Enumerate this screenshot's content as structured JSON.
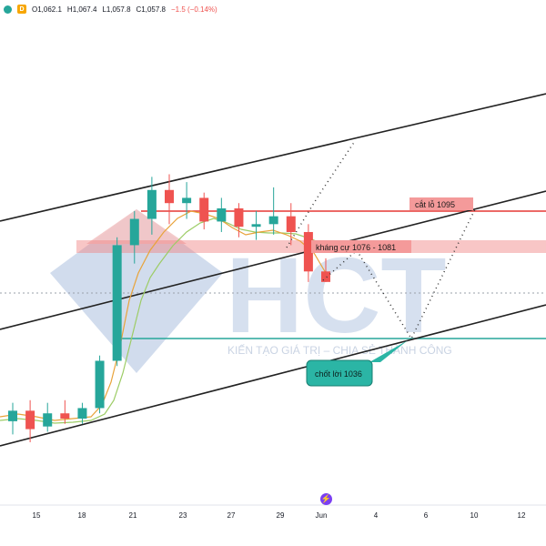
{
  "ohlc": {
    "symbol_badge": "D",
    "open": "O1,062.1",
    "high": "H1,067.4",
    "low": "L1,057.8",
    "close": "C1,057.8",
    "change": "−1.5 (−0.14%)"
  },
  "watermark": {
    "logo": "HCT",
    "slogan": "KIẾN TẠO GIÁ TRỊ – CHIA SẺ THÀNH CÔNG"
  },
  "annotations": {
    "stop_loss": "cắt lỗ 1095",
    "resistance": "kháng cự 1076 - 1081",
    "take_profit": "chốt lời 1036"
  },
  "x_axis": {
    "ticks": [
      "15",
      "18",
      "21",
      "23",
      "27",
      "29",
      "Jun",
      "4",
      "6",
      "10",
      "12"
    ]
  },
  "colors": {
    "up": "#26a69a",
    "down": "#ef5350",
    "stop_line": "#e53935",
    "take_profit_line": "#26a69a",
    "resistance_zone": "#f08080",
    "channel": "#222222",
    "ma_fast": "#e8a33a",
    "ma_slow": "#9ccc65",
    "logo": "#c9d6ea",
    "logo_red": "#f3c4c4"
  },
  "icons": {
    "event": "flash-icon"
  },
  "chart_data": {
    "type": "candlestick",
    "x": [
      "May 14",
      "May 15",
      "May 16",
      "May 17",
      "May 18",
      "May 19",
      "May 20",
      "May 21",
      "May 22",
      "May 23",
      "May 24",
      "May 25",
      "May 26",
      "May 27",
      "May 28",
      "May 29",
      "May 30",
      "May 31",
      "Jun 1"
    ],
    "values": [
      {
        "o": 1005,
        "h": 1012,
        "l": 1000,
        "c": 1009
      },
      {
        "o": 1009,
        "h": 1013,
        "l": 997,
        "c": 1002
      },
      {
        "o": 1003,
        "h": 1012,
        "l": 1001,
        "c": 1008
      },
      {
        "o": 1008,
        "h": 1013,
        "l": 1004,
        "c": 1006
      },
      {
        "o": 1006,
        "h": 1012,
        "l": 1004,
        "c": 1010
      },
      {
        "o": 1010,
        "h": 1030,
        "l": 1008,
        "c": 1028
      },
      {
        "o": 1028,
        "h": 1075,
        "l": 1026,
        "c": 1072
      },
      {
        "o": 1072,
        "h": 1085,
        "l": 1065,
        "c": 1082
      },
      {
        "o": 1082,
        "h": 1098,
        "l": 1076,
        "c": 1093
      },
      {
        "o": 1093,
        "h": 1099,
        "l": 1080,
        "c": 1088
      },
      {
        "o": 1088,
        "h": 1096,
        "l": 1082,
        "c": 1090
      },
      {
        "o": 1090,
        "h": 1092,
        "l": 1078,
        "c": 1081
      },
      {
        "o": 1081,
        "h": 1090,
        "l": 1077,
        "c": 1086
      },
      {
        "o": 1086,
        "h": 1088,
        "l": 1075,
        "c": 1079
      },
      {
        "o": 1079,
        "h": 1085,
        "l": 1074,
        "c": 1080
      },
      {
        "o": 1080,
        "h": 1094,
        "l": 1076,
        "c": 1083
      },
      {
        "o": 1083,
        "h": 1088,
        "l": 1072,
        "c": 1077
      },
      {
        "o": 1077,
        "h": 1080,
        "l": 1058,
        "c": 1062
      },
      {
        "o": 1062,
        "h": 1067,
        "l": 1058,
        "c": 1058
      }
    ],
    "levels": {
      "stop_loss": 1095,
      "resistance_low": 1076,
      "resistance_high": 1081,
      "take_profit": 1036
    },
    "ylim": [
      990,
      1120
    ]
  }
}
